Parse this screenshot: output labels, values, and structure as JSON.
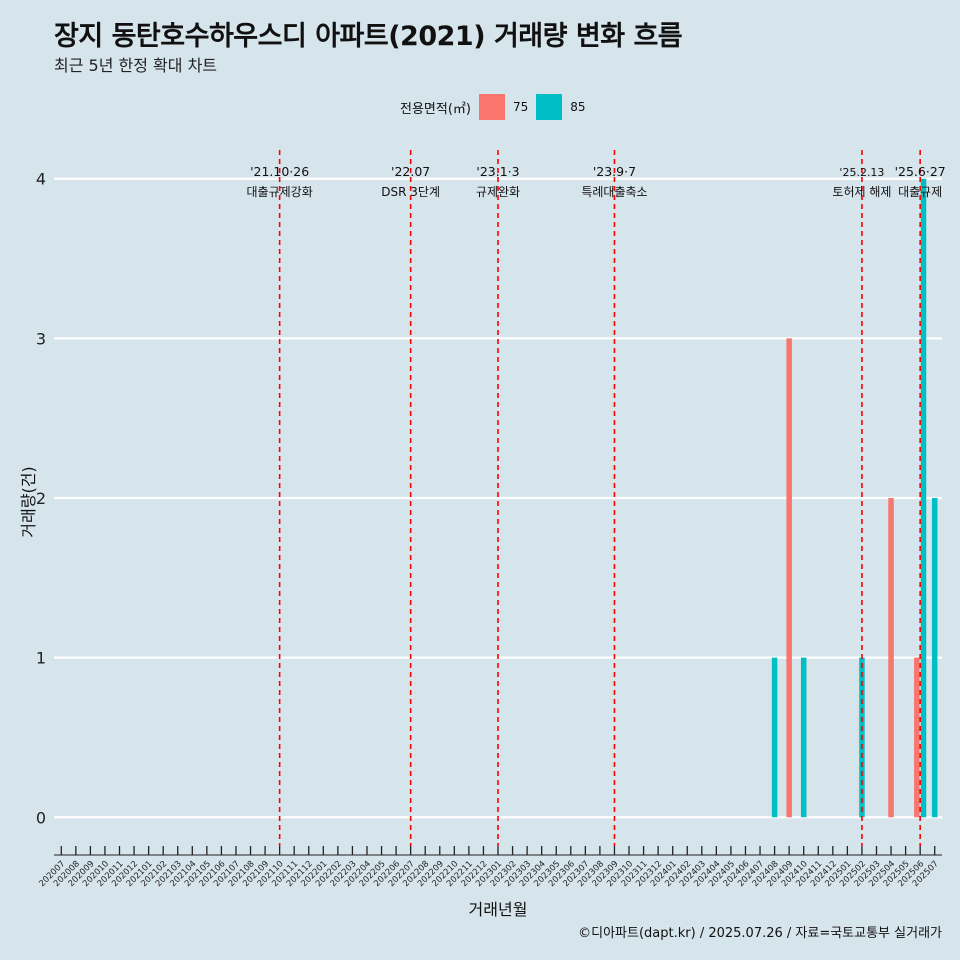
{
  "title": "장지 동탄호수하우스디 아파트(2021) 거래량 변화 흐름",
  "subtitle": "최근 5년 한정 확대 차트",
  "caption": "©디아파트(dapt.kr) / 2025.07.26 / 자료=국토교통부 실거래가",
  "legend": {
    "title": "전용면적(㎡)",
    "items": [
      {
        "label": "75",
        "color": "#f8766d"
      },
      {
        "label": "85",
        "color": "#00bfc4"
      }
    ]
  },
  "chart_data": {
    "type": "bar",
    "title": "장지 동탄호수하우스디 아파트(2021) 거래량 변화 흐름",
    "subtitle": "최근 5년 한정 확대 차트",
    "xlabel": "거래년월",
    "ylabel": "거래량(건)",
    "ylim": [
      -0.18,
      4.18
    ],
    "yticks": [
      0,
      1,
      2,
      3,
      4
    ],
    "grid": true,
    "legend_position": "top",
    "categories": [
      "202007",
      "202008",
      "202009",
      "202010",
      "202011",
      "202012",
      "202101",
      "202102",
      "202103",
      "202104",
      "202105",
      "202106",
      "202107",
      "202108",
      "202109",
      "202110",
      "202111",
      "202112",
      "202201",
      "202202",
      "202203",
      "202204",
      "202205",
      "202206",
      "202207",
      "202208",
      "202209",
      "202210",
      "202211",
      "202212",
      "202301",
      "202302",
      "202303",
      "202304",
      "202305",
      "202306",
      "202307",
      "202308",
      "202309",
      "202310",
      "202311",
      "202312",
      "202401",
      "202402",
      "202403",
      "202404",
      "202405",
      "202406",
      "202407",
      "202408",
      "202409",
      "202410",
      "202411",
      "202412",
      "202501",
      "202502",
      "202503",
      "202504",
      "202505",
      "202506",
      "202507"
    ],
    "series": [
      {
        "name": "75",
        "color": "#f8766d",
        "points": [
          {
            "x": "202409",
            "y": 3
          },
          {
            "x": "202504",
            "y": 2
          },
          {
            "x": "202506",
            "y": 1
          }
        ]
      },
      {
        "name": "85",
        "color": "#00bfc4",
        "points": [
          {
            "x": "202408",
            "y": 1
          },
          {
            "x": "202410",
            "y": 1
          },
          {
            "x": "202502",
            "y": 1
          },
          {
            "x": "202506",
            "y": 4
          },
          {
            "x": "202507",
            "y": 2
          }
        ]
      }
    ],
    "annotations": [
      {
        "x": "202110",
        "date": "'21.10·26",
        "text": "대출규제강화"
      },
      {
        "x": "202207",
        "date": "'22.07",
        "text": "DSR 3단계"
      },
      {
        "x": "202301",
        "date": "'23.1·3",
        "text": "규제완화"
      },
      {
        "x": "202309",
        "date": "'23.9·7",
        "text": "특례대출축소"
      },
      {
        "x": "202502",
        "date": "'25.2.13",
        "text": "토허제 해제"
      },
      {
        "x": "202506",
        "date": "'25.6·27",
        "text": "대출규제"
      }
    ]
  }
}
